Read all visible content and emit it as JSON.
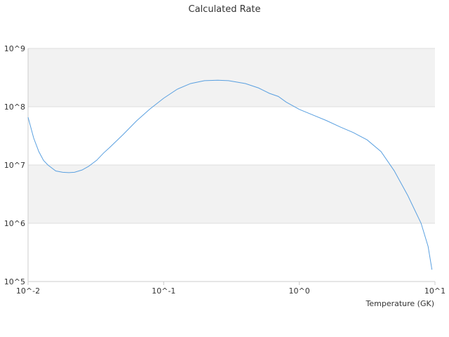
{
  "chart_data": {
    "type": "line",
    "title": "Calculated Rate",
    "xlabel": "Temperature (GK)",
    "ylabel": "",
    "x_scale": "log",
    "y_scale": "log",
    "xlim": [
      0.01,
      10
    ],
    "ylim": [
      100000,
      1000000000
    ],
    "x_ticks": [
      {
        "value": 0.01,
        "label": "10^-2"
      },
      {
        "value": 0.1,
        "label": "10^-1"
      },
      {
        "value": 1,
        "label": "10^0"
      },
      {
        "value": 10,
        "label": "10^1"
      }
    ],
    "y_ticks": [
      {
        "value": 100000,
        "label": "10^5"
      },
      {
        "value": 1000000,
        "label": "10^6"
      },
      {
        "value": 10000000,
        "label": "10^7"
      },
      {
        "value": 100000000,
        "label": "10^8"
      },
      {
        "value": 1000000000,
        "label": "10^9"
      }
    ],
    "grid": "horizontal alternating bands",
    "legend": "none",
    "colors": {
      "line": "#5aa0e0",
      "band": "#f2f2f2",
      "grid": "#dddddd"
    },
    "series": [
      {
        "values": [
          [
            0.01,
            66000000
          ],
          [
            0.011,
            29000000
          ],
          [
            0.012,
            17000000
          ],
          [
            0.013,
            12000000
          ],
          [
            0.014,
            10000000
          ],
          [
            0.016,
            7900000
          ],
          [
            0.018,
            7500000
          ],
          [
            0.02,
            7400000
          ],
          [
            0.022,
            7500000
          ],
          [
            0.025,
            8200000
          ],
          [
            0.028,
            9500000
          ],
          [
            0.032,
            12000000
          ],
          [
            0.036,
            16000000
          ],
          [
            0.04,
            20000000
          ],
          [
            0.05,
            33000000
          ],
          [
            0.063,
            57000000
          ],
          [
            0.079,
            91000000
          ],
          [
            0.1,
            140000000
          ],
          [
            0.126,
            200000000
          ],
          [
            0.158,
            250000000
          ],
          [
            0.2,
            280000000
          ],
          [
            0.25,
            285000000
          ],
          [
            0.3,
            280000000
          ],
          [
            0.4,
            250000000
          ],
          [
            0.5,
            210000000
          ],
          [
            0.6,
            170000000
          ],
          [
            0.7,
            150000000
          ],
          [
            0.8,
            120000000
          ],
          [
            1.0,
            90000000
          ],
          [
            1.26,
            72000000
          ],
          [
            1.58,
            58000000
          ],
          [
            2.0,
            45000000
          ],
          [
            2.5,
            36000000
          ],
          [
            3.16,
            27000000
          ],
          [
            4.0,
            17000000
          ],
          [
            5.0,
            8000000
          ],
          [
            6.3,
            3000000
          ],
          [
            7.9,
            1000000
          ],
          [
            8.9,
            400000
          ],
          [
            9.5,
            160000
          ]
        ]
      }
    ]
  }
}
